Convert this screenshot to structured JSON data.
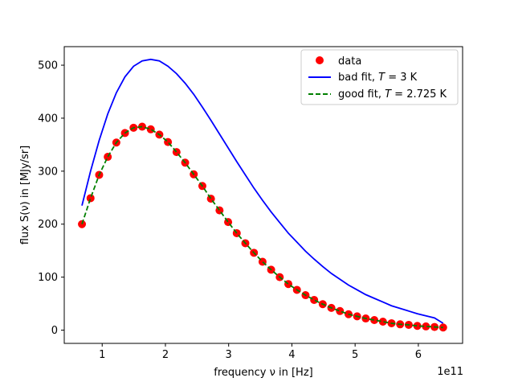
{
  "chart_data": {
    "type": "scatter",
    "title": "",
    "xlabel": "frequency ν in [Hz]",
    "ylabel": "flux S(ν) in [MJy/sr]",
    "x_offset_label": "1e11",
    "x_scale": 100000000000.0,
    "xlim": [
      0.4,
      6.7
    ],
    "ylim": [
      -25,
      535
    ],
    "xticks": [
      1,
      2,
      3,
      4,
      5,
      6
    ],
    "yticks": [
      0,
      100,
      200,
      300,
      400,
      500
    ],
    "legend_position": "upper right",
    "colors": {
      "data": "#ff0000",
      "bad": "#0000ff",
      "good": "#008000"
    },
    "series": [
      {
        "name": "data",
        "label": "data",
        "kind": "markers",
        "x": [
          0.68,
          0.816,
          0.952,
          1.088,
          1.224,
          1.36,
          1.496,
          1.632,
          1.768,
          1.904,
          2.04,
          2.176,
          2.312,
          2.448,
          2.584,
          2.72,
          2.856,
          2.992,
          3.128,
          3.264,
          3.4,
          3.536,
          3.672,
          3.808,
          3.944,
          4.08,
          4.216,
          4.352,
          4.488,
          4.624,
          4.76,
          4.896,
          5.032,
          5.168,
          5.304,
          5.44,
          5.576,
          5.712,
          5.848,
          5.984,
          6.12,
          6.256,
          6.392
        ],
        "y": [
          200,
          249,
          293,
          327,
          354,
          372,
          382,
          384,
          379,
          369,
          355,
          336,
          316,
          294,
          272,
          248,
          226,
          204,
          183,
          164,
          146,
          129,
          114,
          100,
          87,
          76,
          66,
          57,
          49,
          42,
          36,
          30,
          26,
          22,
          19,
          16,
          13,
          11,
          10,
          8,
          7,
          6,
          5
        ]
      },
      {
        "name": "bad_fit",
        "label_prefix": "bad fit, ",
        "label_math": "T",
        "label_suffix": " = 3 K",
        "kind": "line-solid",
        "x": [
          0.68,
          0.816,
          0.952,
          1.088,
          1.224,
          1.36,
          1.496,
          1.632,
          1.768,
          1.904,
          2.04,
          2.176,
          2.312,
          2.448,
          2.584,
          2.72,
          2.856,
          2.992,
          3.128,
          3.264,
          3.4,
          3.536,
          3.672,
          3.808,
          3.944,
          4.08,
          4.216,
          4.352,
          4.488,
          4.624,
          4.76,
          4.896,
          5.032,
          5.168,
          5.304,
          5.44,
          5.576,
          5.712,
          5.848,
          5.984,
          6.12,
          6.256,
          6.392
        ],
        "y": [
          235,
          300,
          358,
          408,
          448,
          478,
          498,
          508,
          511,
          508,
          498,
          484,
          466,
          445,
          421,
          396,
          370,
          344,
          318,
          293,
          268,
          245,
          223,
          203,
          183,
          166,
          149,
          134,
          120,
          107,
          96,
          85,
          76,
          67,
          60,
          53,
          46,
          41,
          36,
          31,
          27,
          23,
          13
        ]
      },
      {
        "name": "good_fit",
        "label_prefix": "good fit, ",
        "label_math": "T",
        "label_suffix": " = 2.725 K",
        "kind": "line-dashed",
        "x": [
          0.68,
          0.816,
          0.952,
          1.088,
          1.224,
          1.36,
          1.496,
          1.632,
          1.768,
          1.904,
          2.04,
          2.176,
          2.312,
          2.448,
          2.584,
          2.72,
          2.856,
          2.992,
          3.128,
          3.264,
          3.4,
          3.536,
          3.672,
          3.808,
          3.944,
          4.08,
          4.216,
          4.352,
          4.488,
          4.624,
          4.76,
          4.896,
          5.032,
          5.168,
          5.304,
          5.44,
          5.576,
          5.712,
          5.848,
          5.984,
          6.12,
          6.256,
          6.392
        ],
        "y": [
          200,
          249,
          293,
          327,
          354,
          372,
          382,
          384,
          379,
          369,
          355,
          336,
          316,
          294,
          272,
          248,
          226,
          204,
          183,
          164,
          146,
          129,
          114,
          100,
          87,
          76,
          66,
          57,
          49,
          42,
          36,
          30,
          26,
          22,
          19,
          16,
          13,
          11,
          10,
          8,
          7,
          6,
          5
        ]
      }
    ]
  }
}
